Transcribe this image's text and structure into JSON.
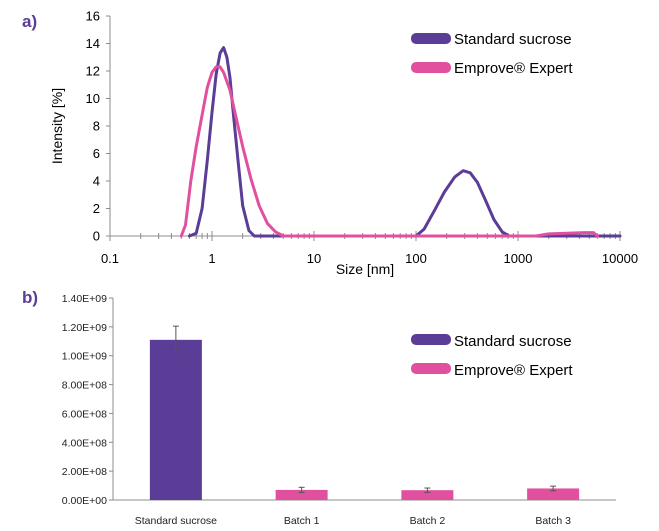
{
  "colors": {
    "standard": "#5b3c96",
    "emprove": "#e0509e",
    "axis": "#8c8c8c"
  },
  "chart_data": [
    {
      "panel_label": "a)",
      "type": "line",
      "xlabel": "Size [nm]",
      "ylabel": "Intensity [%]",
      "xscale": "log",
      "xlim": [
        0.1,
        10000
      ],
      "ylim": [
        0,
        16
      ],
      "x_ticks": [
        "0.1",
        "1",
        "10",
        "100",
        "1000",
        "10000"
      ],
      "y_ticks": [
        "0",
        "2",
        "4",
        "6",
        "8",
        "10",
        "12",
        "14",
        "16"
      ],
      "legend_position": "top-right",
      "series": [
        {
          "name": "Standard sucrose",
          "color": "#5b3c96",
          "points": [
            [
              0.6,
              0
            ],
            [
              0.7,
              0.2
            ],
            [
              0.8,
              2.0
            ],
            [
              0.9,
              5.5
            ],
            [
              1.0,
              9.0
            ],
            [
              1.1,
              11.8
            ],
            [
              1.2,
              13.3
            ],
            [
              1.3,
              13.7
            ],
            [
              1.4,
              13.0
            ],
            [
              1.5,
              11.5
            ],
            [
              1.6,
              9.3
            ],
            [
              1.8,
              5.5
            ],
            [
              2.0,
              2.2
            ],
            [
              2.3,
              0.4
            ],
            [
              2.6,
              0
            ],
            [
              100,
              0
            ],
            [
              120,
              0.5
            ],
            [
              150,
              1.8
            ],
            [
              190,
              3.2
            ],
            [
              240,
              4.3
            ],
            [
              290,
              4.75
            ],
            [
              340,
              4.6
            ],
            [
              400,
              3.9
            ],
            [
              480,
              2.6
            ],
            [
              580,
              1.2
            ],
            [
              700,
              0.3
            ],
            [
              820,
              0
            ],
            [
              10000,
              0
            ]
          ]
        },
        {
          "name": "Empro​ve® Expert",
          "color": "#e0509e",
          "points": [
            [
              0.5,
              0
            ],
            [
              0.55,
              0.8
            ],
            [
              0.62,
              4.0
            ],
            [
              0.7,
              6.5
            ],
            [
              0.8,
              8.8
            ],
            [
              0.9,
              10.8
            ],
            [
              1.0,
              11.9
            ],
            [
              1.1,
              12.3
            ],
            [
              1.2,
              12.3
            ],
            [
              1.3,
              11.9
            ],
            [
              1.5,
              10.6
            ],
            [
              1.7,
              8.8
            ],
            [
              2.0,
              6.5
            ],
            [
              2.4,
              4.2
            ],
            [
              2.9,
              2.2
            ],
            [
              3.5,
              0.9
            ],
            [
              4.2,
              0.3
            ],
            [
              5.0,
              0
            ],
            [
              1500,
              0
            ],
            [
              2000,
              0.15
            ],
            [
              3000,
              0.2
            ],
            [
              4500,
              0.25
            ],
            [
              5500,
              0.25
            ],
            [
              6000,
              0
            ]
          ]
        }
      ]
    },
    {
      "panel_label": "b)",
      "type": "bar",
      "categories": [
        "Standard sucrose",
        "Batch 1",
        "Batch 2",
        "Batch 3"
      ],
      "values": [
        1110000000.0,
        70000000.0,
        68000000.0,
        80000000.0
      ],
      "errors": [
        95000000.0,
        18000000.0,
        15000000.0,
        16000000.0
      ],
      "bar_series": [
        "Standard sucrose",
        "Empro​ve® Expert",
        "Empro​ve® Expert",
        "Empro​ve® Expert"
      ],
      "ylim": [
        0,
        1400000000.0
      ],
      "y_ticks": [
        "0.00E+00",
        "2.00E+08",
        "4.00E+08",
        "6.00E+08",
        "8.00E+08",
        "1.00E+09",
        "1.20E+09",
        "1.40E+09"
      ],
      "legend_position": "right",
      "legend": [
        {
          "name": "Standard sucrose",
          "color": "#5b3c96"
        },
        {
          "name": "Empro​ve® Expert",
          "color": "#e0509e"
        }
      ]
    }
  ]
}
